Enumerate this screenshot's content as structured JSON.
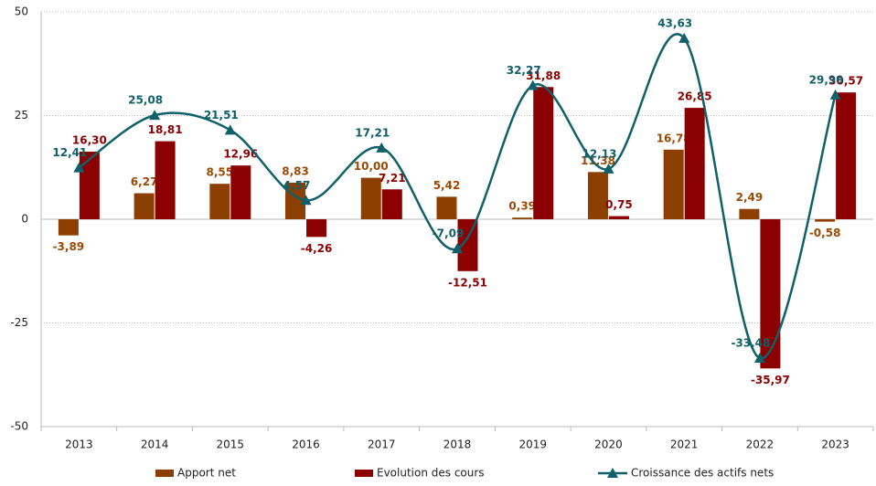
{
  "chart_data": {
    "type": "bar",
    "categories": [
      "2013",
      "2014",
      "2015",
      "2016",
      "2017",
      "2018",
      "2019",
      "2020",
      "2021",
      "2022",
      "2023"
    ],
    "series": [
      {
        "name": "Apport net",
        "type": "bar",
        "color": "#8c3f00",
        "label_color": "#9a4a06",
        "values": [
          -3.89,
          6.27,
          8.55,
          8.83,
          10.0,
          5.42,
          0.39,
          11.38,
          16.78,
          2.49,
          -0.58
        ],
        "value_labels": [
          "-3,89",
          "6,27",
          "8,55",
          "8,83",
          "10,00",
          "5,42",
          "0,39",
          "11,38",
          "16,78",
          "2,49",
          "-0,58"
        ]
      },
      {
        "name": "Evolution des cours",
        "type": "bar",
        "color": "#8b0000",
        "label_color": "#8b0000",
        "values": [
          16.3,
          18.81,
          12.96,
          -4.26,
          7.21,
          -12.51,
          31.88,
          0.75,
          26.85,
          -35.97,
          30.57
        ],
        "value_labels": [
          "16,30",
          "18,81",
          "12,96",
          "-4,26",
          "7,21",
          "-12,51",
          "31,88",
          "0,75",
          "26,85",
          "-35,97",
          "30,57"
        ]
      },
      {
        "name": "Croissance des actifs nets",
        "type": "line",
        "color": "#10606a",
        "label_color": "#10606a",
        "values": [
          12.41,
          25.08,
          21.51,
          4.57,
          17.21,
          -7.09,
          32.27,
          12.13,
          43.63,
          -33.48,
          29.99
        ],
        "value_labels": [
          "12,41",
          "25,08",
          "21,51",
          "4,57",
          "17,21",
          "-7,09",
          "32,27",
          "12,13",
          "43,63",
          "-33,48",
          "29,99"
        ]
      }
    ],
    "ylim": [
      -50,
      50
    ],
    "yticks": [
      -50,
      -25,
      0,
      25,
      50
    ],
    "grid": true,
    "legend": "bottom"
  }
}
